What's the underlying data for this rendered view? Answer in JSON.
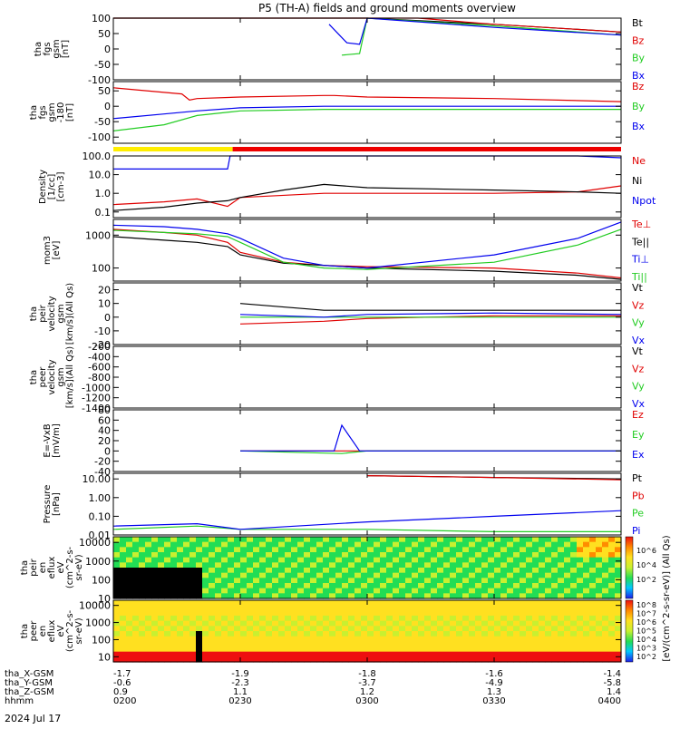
{
  "title": "P5 (TH-A) fields and ground moments overview",
  "date_label": "2024 Jul 17",
  "colors": {
    "black": "#000000",
    "red": "#e00000",
    "green": "#22cc22",
    "blue": "#0000ee",
    "yellow": "#ffee00",
    "bar_red": "#ee0000"
  },
  "chart_data": [
    {
      "type": "line",
      "id": "fgs",
      "ylabel_lines": [
        "tha",
        "fgs",
        "gsm",
        "[nT]"
      ],
      "ylim": [
        -100,
        100
      ],
      "yticks": [
        -100,
        -50,
        0,
        50,
        100
      ],
      "series": [
        {
          "name": "Bt",
          "color": "#000000",
          "x": [
            2.0,
            2.2,
            2.33,
            2.5,
            2.67,
            3.0,
            3.5,
            4.0
          ],
          "y": [
            100,
            100,
            100,
            100,
            100,
            100,
            80,
            55
          ]
        },
        {
          "name": "Bz",
          "color": "#e00000",
          "x": [
            2.0,
            2.8,
            3.17,
            3.2,
            3.5,
            4.0
          ],
          "y": [
            100,
            100,
            100,
            100,
            80,
            55
          ]
        },
        {
          "name": "By",
          "color": "#22cc22",
          "x": [
            2.9,
            2.97,
            3.0,
            3.5,
            4.0
          ],
          "y": [
            -20,
            -15,
            100,
            75,
            45
          ]
        },
        {
          "name": "Bx",
          "color": "#0000ee",
          "x": [
            2.85,
            2.92,
            2.97,
            3.0,
            3.5,
            4.0
          ],
          "y": [
            80,
            20,
            15,
            100,
            70,
            45
          ]
        }
      ]
    },
    {
      "type": "line",
      "id": "fgs_rot",
      "ylabel_lines": [
        "tha",
        "fgs",
        "gsm",
        "-180",
        "[nT]"
      ],
      "ylim": [
        -120,
        80
      ],
      "yticks": [
        -100,
        -50,
        0,
        50
      ],
      "series": [
        {
          "name": "Bz",
          "color": "#e00000",
          "x": [
            2.0,
            2.2,
            2.27,
            2.3,
            2.33,
            2.5,
            2.83,
            2.87,
            3.0,
            3.5,
            4.0
          ],
          "y": [
            60,
            45,
            40,
            20,
            25,
            30,
            35,
            35,
            30,
            25,
            15
          ]
        },
        {
          "name": "By",
          "color": "#22cc22",
          "x": [
            2.0,
            2.2,
            2.33,
            2.5,
            2.83,
            3.0,
            3.5,
            4.0
          ],
          "y": [
            -80,
            -60,
            -30,
            -15,
            -10,
            -10,
            -10,
            -10
          ]
        },
        {
          "name": "Bx",
          "color": "#0000ee",
          "x": [
            2.0,
            2.2,
            2.33,
            2.5,
            2.83,
            3.0,
            3.5,
            4.0
          ],
          "y": [
            -40,
            -25,
            -15,
            -5,
            0,
            0,
            0,
            0
          ]
        }
      ]
    },
    {
      "type": "line",
      "id": "density",
      "ylabel_lines": [
        "Density",
        "[1/cc]",
        "[cm-3]"
      ],
      "ylog": true,
      "ylim": [
        0.05,
        100
      ],
      "ytick_labels": [
        "0.1",
        "1.0",
        "10.0",
        "100.0"
      ],
      "yticks": [
        0.1,
        1,
        10,
        100
      ],
      "series": [
        {
          "name": "Ne",
          "color": "#e00000",
          "x": [
            2.0,
            2.2,
            2.33,
            2.45,
            2.5,
            2.83,
            3.0,
            3.5,
            3.83,
            4.0
          ],
          "y": [
            0.25,
            0.35,
            0.5,
            0.2,
            0.6,
            1.0,
            1.0,
            1.0,
            1.2,
            2.5
          ]
        },
        {
          "name": "Ni",
          "color": "#000000",
          "x": [
            2.0,
            2.2,
            2.33,
            2.45,
            2.5,
            2.67,
            2.83,
            3.0,
            3.5,
            3.83,
            4.0
          ],
          "y": [
            0.12,
            0.18,
            0.3,
            0.4,
            0.6,
            1.5,
            3.0,
            2.0,
            1.5,
            1.2,
            1.0
          ]
        },
        {
          "name": "Npot",
          "color": "#0000ee",
          "x": [
            2.0,
            2.45,
            2.46,
            3.5,
            3.83,
            4.0
          ],
          "y": [
            20,
            20,
            100,
            100,
            100,
            80
          ]
        }
      ]
    },
    {
      "type": "line",
      "id": "temp",
      "ylabel_lines": [
        "mom3",
        "[eV]"
      ],
      "ylog": true,
      "ylim": [
        40,
        3000
      ],
      "ytick_labels": [
        "100",
        "1000"
      ],
      "yticks": [
        100,
        1000
      ],
      "series": [
        {
          "name": "Te⊥",
          "color": "#e00000",
          "x": [
            2.0,
            2.2,
            2.33,
            2.45,
            2.5,
            2.67,
            2.83,
            3.0,
            3.5,
            3.83,
            4.0
          ],
          "y": [
            1500,
            1200,
            1000,
            600,
            300,
            150,
            120,
            110,
            100,
            70,
            50
          ]
        },
        {
          "name": "Te||",
          "color": "#000000",
          "x": [
            2.0,
            2.2,
            2.33,
            2.45,
            2.5,
            2.67,
            2.83,
            3.0,
            3.5,
            3.83,
            4.0
          ],
          "y": [
            900,
            700,
            600,
            450,
            250,
            140,
            120,
            100,
            80,
            60,
            45
          ]
        },
        {
          "name": "Ti⊥",
          "color": "#0000ee",
          "x": [
            2.0,
            2.2,
            2.33,
            2.45,
            2.5,
            2.67,
            2.83,
            3.0,
            3.5,
            3.83,
            4.0
          ],
          "y": [
            2000,
            1800,
            1500,
            1100,
            800,
            200,
            120,
            100,
            250,
            800,
            2500
          ]
        },
        {
          "name": "Ti||",
          "color": "#22cc22",
          "x": [
            2.0,
            2.2,
            2.33,
            2.45,
            2.5,
            2.67,
            2.83,
            3.0,
            3.5,
            3.83,
            4.0
          ],
          "y": [
            1400,
            1200,
            1100,
            900,
            600,
            150,
            100,
            90,
            150,
            500,
            1500
          ]
        }
      ]
    },
    {
      "type": "line",
      "id": "vel_peir",
      "ylabel_lines": [
        "tha",
        "peir",
        "velocity",
        "gsm",
        "[km/s](All Qs)"
      ],
      "ylim": [
        -20,
        25
      ],
      "yticks": [
        -20,
        -10,
        0,
        10,
        20
      ],
      "series": [
        {
          "name": "Vt",
          "color": "#000000",
          "x": [
            2.5,
            2.83,
            3.0,
            3.5,
            4.0
          ],
          "y": [
            10,
            5,
            5,
            5,
            5
          ]
        },
        {
          "name": "Vz",
          "color": "#e00000",
          "x": [
            2.5,
            2.83,
            3.0,
            3.5,
            4.0
          ],
          "y": [
            -5,
            -3,
            -1,
            1,
            1
          ]
        },
        {
          "name": "Vy",
          "color": "#22cc22",
          "x": [
            2.5,
            2.83,
            3.0,
            3.5,
            4.0
          ],
          "y": [
            0,
            0,
            0,
            0,
            0
          ]
        },
        {
          "name": "Vx",
          "color": "#0000ee",
          "x": [
            2.5,
            2.83,
            3.0,
            3.5,
            4.0
          ],
          "y": [
            2,
            0,
            2,
            3,
            2
          ]
        }
      ]
    },
    {
      "type": "line",
      "id": "vel_peer",
      "ylabel_lines": [
        "tha",
        "peer",
        "velocity",
        "gsm",
        "[km/s](All Qs)"
      ],
      "ylim": [
        -1400,
        -200
      ],
      "yticks": [
        -1400,
        -1200,
        -1000,
        -800,
        -600,
        -400,
        -200
      ],
      "series": [
        {
          "name": "Vt",
          "color": "#000000",
          "x": [],
          "y": []
        },
        {
          "name": "Vz",
          "color": "#e00000",
          "x": [],
          "y": []
        },
        {
          "name": "Vy",
          "color": "#22cc22",
          "x": [],
          "y": []
        },
        {
          "name": "Vx",
          "color": "#0000ee",
          "x": [],
          "y": []
        }
      ]
    },
    {
      "type": "line",
      "id": "efield",
      "ylabel_lines": [
        "E=-VxB",
        "[mV/m]"
      ],
      "ylim": [
        -40,
        80
      ],
      "yticks": [
        -40,
        -20,
        0,
        20,
        40,
        60,
        80
      ],
      "series": [
        {
          "name": "Ez",
          "color": "#e00000",
          "x": [
            2.5,
            3.0,
            3.5,
            4.0
          ],
          "y": [
            0,
            0,
            0,
            0
          ]
        },
        {
          "name": "Ey",
          "color": "#22cc22",
          "x": [
            2.5,
            2.9,
            3.0,
            3.5,
            4.0
          ],
          "y": [
            0,
            -5,
            0,
            0,
            0
          ]
        },
        {
          "name": "Ex",
          "color": "#0000ee",
          "x": [
            2.5,
            2.87,
            2.9,
            2.97,
            3.0,
            3.5,
            4.0
          ],
          "y": [
            0,
            0,
            50,
            0,
            0,
            0,
            0
          ]
        }
      ]
    },
    {
      "type": "line",
      "id": "pressure",
      "ylabel_lines": [
        "Pressure",
        "[nPa]"
      ],
      "ylog": true,
      "ylim": [
        0.01,
        20
      ],
      "ytick_labels": [
        "0.01",
        "0.10",
        "1.00",
        "10.00"
      ],
      "yticks": [
        0.01,
        0.1,
        1,
        10
      ],
      "series": [
        {
          "name": "Pt",
          "color": "#000000",
          "x": [
            3.0,
            3.5,
            4.0
          ],
          "y": [
            15,
            12,
            10
          ]
        },
        {
          "name": "Pb",
          "color": "#e00000",
          "x": [
            3.0,
            3.5,
            4.0
          ],
          "y": [
            15,
            12,
            9
          ]
        },
        {
          "name": "Pe",
          "color": "#22cc22",
          "x": [
            2.0,
            2.33,
            2.5,
            3.0,
            3.5,
            4.0
          ],
          "y": [
            0.02,
            0.03,
            0.02,
            0.02,
            0.015,
            0.015
          ]
        },
        {
          "name": "Pi",
          "color": "#0000ee",
          "x": [
            2.0,
            2.33,
            2.5,
            3.0,
            3.5,
            4.0
          ],
          "y": [
            0.03,
            0.04,
            0.02,
            0.05,
            0.1,
            0.2
          ]
        }
      ]
    },
    {
      "type": "heatmap",
      "id": "peir_eflux",
      "ylabel_lines": [
        "tha",
        "peir",
        "en",
        "eflux",
        "eV",
        "(cm^2-s-",
        "sr-eV)"
      ],
      "ylog": true,
      "ylim": [
        10,
        20000
      ],
      "ytick_labels": [
        "10",
        "100",
        "1000",
        "10000"
      ],
      "yticks": [
        10,
        100,
        1000,
        10000
      ]
    },
    {
      "type": "heatmap",
      "id": "peer_eflux",
      "ylabel_lines": [
        "tha",
        "peer",
        "en",
        "eflux",
        "eV",
        "(cm^2-s-",
        "sr-eV)"
      ],
      "ylog": true,
      "ylim": [
        5,
        20000
      ],
      "ytick_labels": [
        "10",
        "100",
        "1000",
        "10000"
      ],
      "yticks": [
        10,
        100,
        1000,
        10000
      ]
    }
  ],
  "colorbar": {
    "label": "[eV/(cm^2-s-sr-eV)]",
    "label2": "[eV/(cm^2-s-sr-eV)] (All Qs)",
    "ticks": [
      "10^6",
      "10^4",
      "10^2"
    ],
    "ticks2": [
      "10^8",
      "10^7",
      "10^6",
      "10^5",
      "10^4",
      "10^3",
      "10^2"
    ]
  },
  "x_axis": {
    "range": [
      2.0,
      4.0
    ],
    "ticks": [
      2.0,
      2.5,
      3.0,
      3.5,
      4.0
    ],
    "rows": [
      {
        "label": "tha_X-GSM",
        "values": [
          "-1.7",
          "-1.9",
          "-1.8",
          "-1.6",
          "-1.4"
        ]
      },
      {
        "label": "tha_Y-GSM",
        "values": [
          "-0.6",
          "-2.3",
          "-3.7",
          "-4.9",
          "-5.8"
        ]
      },
      {
        "label": "tha_Z-GSM",
        "values": [
          "0.9",
          "1.1",
          "1.2",
          "1.3",
          "1.4"
        ]
      },
      {
        "label": "hhmm",
        "values": [
          "0200",
          "0230",
          "0300",
          "0330",
          "0400"
        ]
      }
    ]
  },
  "mode_bar": {
    "segments": [
      {
        "from": 2.0,
        "to": 2.47,
        "color": "#ffee00"
      },
      {
        "from": 2.47,
        "to": 4.0,
        "color": "#ee0000"
      }
    ]
  }
}
